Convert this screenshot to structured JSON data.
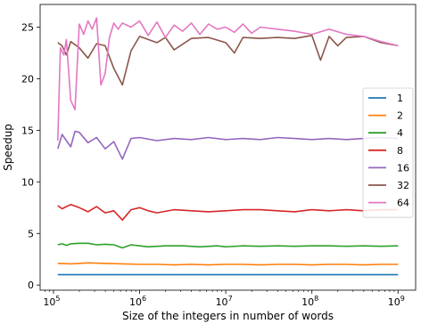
{
  "chart_data": {
    "type": "line",
    "title": "",
    "xlabel": "Size of the integers in number of words",
    "ylabel": "Speedup",
    "x_scale": "log",
    "xlim": [
      70000,
      1600000000
    ],
    "ylim": [
      -0.5,
      27.2
    ],
    "x_ticks": [
      {
        "value": 100000,
        "base": "10",
        "exp": "5"
      },
      {
        "value": 1000000,
        "base": "10",
        "exp": "6"
      },
      {
        "value": 10000000,
        "base": "10",
        "exp": "7"
      },
      {
        "value": 100000000,
        "base": "10",
        "exp": "8"
      },
      {
        "value": 1000000000,
        "base": "10",
        "exp": "9"
      }
    ],
    "y_ticks": [
      {
        "value": 0,
        "label": "0"
      },
      {
        "value": 5,
        "label": "5"
      },
      {
        "value": 10,
        "label": "10"
      },
      {
        "value": 15,
        "label": "15"
      },
      {
        "value": 20,
        "label": "20"
      },
      {
        "value": 25,
        "label": "25"
      }
    ],
    "grid": false,
    "legend_position": "right",
    "series": [
      {
        "name": "1",
        "color": "#1f77b4",
        "x_log10": [
          5.05,
          9.0
        ],
        "values": [
          1.0,
          1.0
        ]
      },
      {
        "name": "2",
        "color": "#ff7f0e",
        "x_log10": [
          5.05,
          5.2,
          5.3,
          5.4,
          5.6,
          5.8,
          6.0,
          6.2,
          6.4,
          6.6,
          6.8,
          7.0,
          7.2,
          7.4,
          7.6,
          7.8,
          8.0,
          8.2,
          8.4,
          8.6,
          8.8,
          9.0
        ],
        "values": [
          2.1,
          2.05,
          2.1,
          2.15,
          2.1,
          2.05,
          2.0,
          2.0,
          1.95,
          2.0,
          1.95,
          2.0,
          2.0,
          1.95,
          2.0,
          2.0,
          1.95,
          2.0,
          2.0,
          1.95,
          2.0,
          2.0
        ]
      },
      {
        "name": "4",
        "color": "#2ca02c",
        "x_log10": [
          5.05,
          5.1,
          5.15,
          5.2,
          5.3,
          5.4,
          5.5,
          5.6,
          5.7,
          5.8,
          5.9,
          6.0,
          6.1,
          6.2,
          6.3,
          6.5,
          6.7,
          6.9,
          7.0,
          7.2,
          7.4,
          7.6,
          7.8,
          8.0,
          8.2,
          8.4,
          8.6,
          8.8,
          9.0
        ],
        "values": [
          3.9,
          4.0,
          3.85,
          4.0,
          4.05,
          4.05,
          3.9,
          3.95,
          3.9,
          3.6,
          3.9,
          3.8,
          3.7,
          3.75,
          3.8,
          3.8,
          3.7,
          3.8,
          3.7,
          3.8,
          3.75,
          3.8,
          3.75,
          3.8,
          3.8,
          3.75,
          3.8,
          3.75,
          3.8
        ]
      },
      {
        "name": "8",
        "color": "#d62728",
        "x_log10": [
          5.05,
          5.1,
          5.2,
          5.3,
          5.4,
          5.5,
          5.6,
          5.7,
          5.8,
          5.9,
          6.0,
          6.1,
          6.2,
          6.4,
          6.6,
          6.8,
          7.0,
          7.2,
          7.4,
          7.6,
          7.8,
          8.0,
          8.2,
          8.4,
          8.6,
          8.8,
          9.0
        ],
        "values": [
          7.7,
          7.4,
          7.8,
          7.5,
          7.1,
          7.6,
          7.0,
          7.2,
          6.3,
          7.3,
          7.5,
          7.2,
          7.0,
          7.3,
          7.2,
          7.1,
          7.2,
          7.3,
          7.3,
          7.2,
          7.1,
          7.3,
          7.2,
          7.3,
          7.2,
          7.3,
          7.3
        ]
      },
      {
        "name": "16",
        "color": "#9467bd",
        "x_log10": [
          5.05,
          5.1,
          5.15,
          5.2,
          5.25,
          5.3,
          5.4,
          5.5,
          5.6,
          5.7,
          5.8,
          5.9,
          6.0,
          6.2,
          6.4,
          6.6,
          6.8,
          7.0,
          7.2,
          7.4,
          7.6,
          7.8,
          8.0,
          8.2,
          8.4,
          8.6,
          8.8,
          9.0
        ],
        "values": [
          13.2,
          14.6,
          14.0,
          13.4,
          14.9,
          14.8,
          13.8,
          14.3,
          13.2,
          13.9,
          12.2,
          14.2,
          14.3,
          14.0,
          14.2,
          14.1,
          14.3,
          14.1,
          14.2,
          14.1,
          14.3,
          14.2,
          14.1,
          14.2,
          14.1,
          14.2,
          14.3,
          14.2
        ]
      },
      {
        "name": "32",
        "color": "#8c564b",
        "x_log10": [
          5.05,
          5.1,
          5.15,
          5.2,
          5.3,
          5.4,
          5.5,
          5.6,
          5.7,
          5.8,
          5.9,
          6.0,
          6.1,
          6.2,
          6.3,
          6.4,
          6.6,
          6.8,
          7.0,
          7.1,
          7.2,
          7.4,
          7.6,
          7.8,
          8.0,
          8.1,
          8.2,
          8.3,
          8.4,
          8.6,
          8.8,
          9.0
        ],
        "values": [
          23.5,
          23.2,
          22.3,
          23.6,
          23.0,
          22.0,
          23.4,
          23.2,
          21.0,
          19.4,
          22.7,
          24.1,
          23.8,
          23.5,
          24.0,
          22.8,
          23.9,
          24.0,
          23.5,
          22.5,
          24.0,
          23.9,
          24.0,
          23.9,
          24.2,
          21.8,
          24.1,
          23.2,
          24.0,
          24.1,
          23.5,
          23.2
        ]
      },
      {
        "name": "64",
        "color": "#e377c2",
        "x_log10": [
          5.05,
          5.08,
          5.12,
          5.15,
          5.2,
          5.25,
          5.3,
          5.35,
          5.4,
          5.45,
          5.5,
          5.55,
          5.6,
          5.65,
          5.7,
          5.75,
          5.8,
          5.9,
          6.0,
          6.1,
          6.2,
          6.3,
          6.4,
          6.5,
          6.6,
          6.7,
          6.8,
          6.9,
          7.0,
          7.1,
          7.2,
          7.3,
          7.4,
          7.6,
          7.8,
          8.0,
          8.2,
          8.4,
          8.6,
          8.8,
          9.0
        ],
        "values": [
          14.0,
          23.0,
          22.3,
          23.8,
          17.9,
          17.0,
          25.3,
          24.3,
          25.6,
          24.8,
          25.9,
          19.4,
          20.5,
          24.0,
          25.4,
          24.8,
          25.4,
          25.0,
          25.6,
          24.2,
          25.5,
          24.0,
          25.2,
          24.6,
          25.4,
          24.3,
          25.3,
          24.8,
          25.0,
          24.5,
          25.3,
          24.4,
          25.0,
          24.8,
          24.6,
          24.3,
          24.8,
          24.3,
          24.1,
          23.6,
          23.2
        ]
      }
    ]
  }
}
